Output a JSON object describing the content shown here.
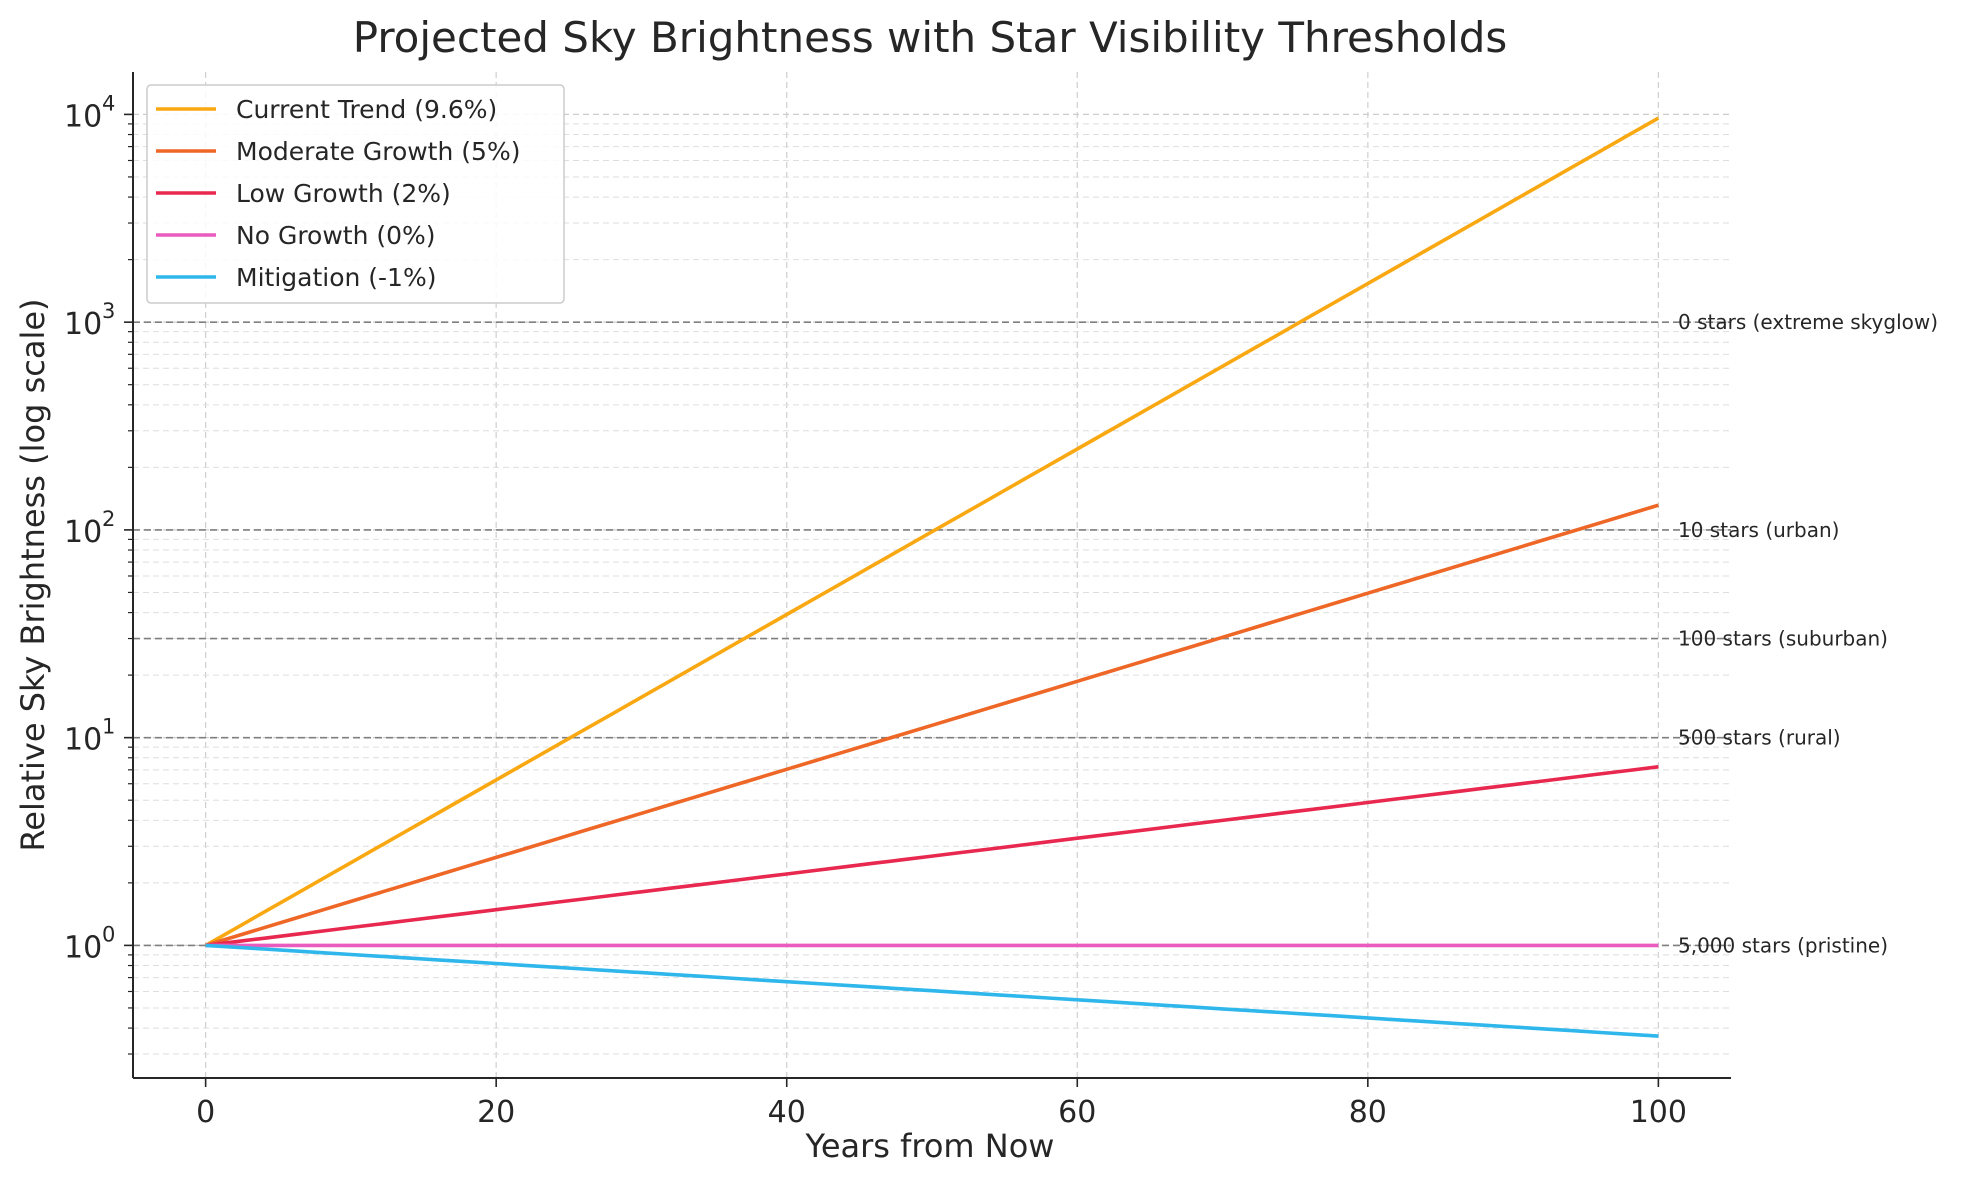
{
  "chart_data": {
    "type": "line",
    "title": "Projected Sky Brightness with Star Visibility Thresholds",
    "xlabel": "Years from Now",
    "ylabel": "Relative Sky Brightness (log scale)",
    "yscale": "log",
    "xlim": [
      -5,
      105
    ],
    "ylim": [
      0.23,
      16000
    ],
    "xticks": [
      0,
      20,
      40,
      60,
      80,
      100
    ],
    "xtick_labels": [
      "0",
      "20",
      "40",
      "60",
      "80",
      "100"
    ],
    "yticks": [
      1,
      10,
      100,
      1000,
      10000
    ],
    "ytick_labels": [
      {
        "base": "10",
        "exp": "0"
      },
      {
        "base": "10",
        "exp": "1"
      },
      {
        "base": "10",
        "exp": "2"
      },
      {
        "base": "10",
        "exp": "3"
      },
      {
        "base": "10",
        "exp": "4"
      }
    ],
    "grid": true,
    "legend_position": "upper-left",
    "series": [
      {
        "name": "Current Trend (9.6%)",
        "rate": 0.096,
        "color": "#F9A812",
        "x": [
          0,
          100
        ],
        "y_start": 1,
        "y_end": 9600
      },
      {
        "name": "Moderate Growth (5%)",
        "rate": 0.05,
        "color": "#EE6727",
        "x": [
          0,
          100
        ],
        "y_start": 1,
        "y_end": 131.5
      },
      {
        "name": "Low Growth (2%)",
        "rate": 0.02,
        "color": "#E8284F",
        "x": [
          0,
          100
        ],
        "y_start": 1,
        "y_end": 7.24
      },
      {
        "name": "No Growth (0%)",
        "rate": 0.0,
        "color": "#E95BBE",
        "x": [
          0,
          100
        ],
        "y_start": 1,
        "y_end": 1
      },
      {
        "name": "Mitigation (-1%)",
        "rate": -0.01,
        "color": "#2FB7EC",
        "x": [
          0,
          100
        ],
        "y_start": 1,
        "y_end": 0.366
      }
    ],
    "thresholds": [
      {
        "value": 1000,
        "label": "0 stars (extreme skyglow)"
      },
      {
        "value": 100,
        "label": "10 stars (urban)"
      },
      {
        "value": 30,
        "label": "100 stars (suburban)"
      },
      {
        "value": 10,
        "label": "500 stars (rural)"
      },
      {
        "value": 1,
        "label": "5,000 stars (pristine)"
      }
    ]
  }
}
